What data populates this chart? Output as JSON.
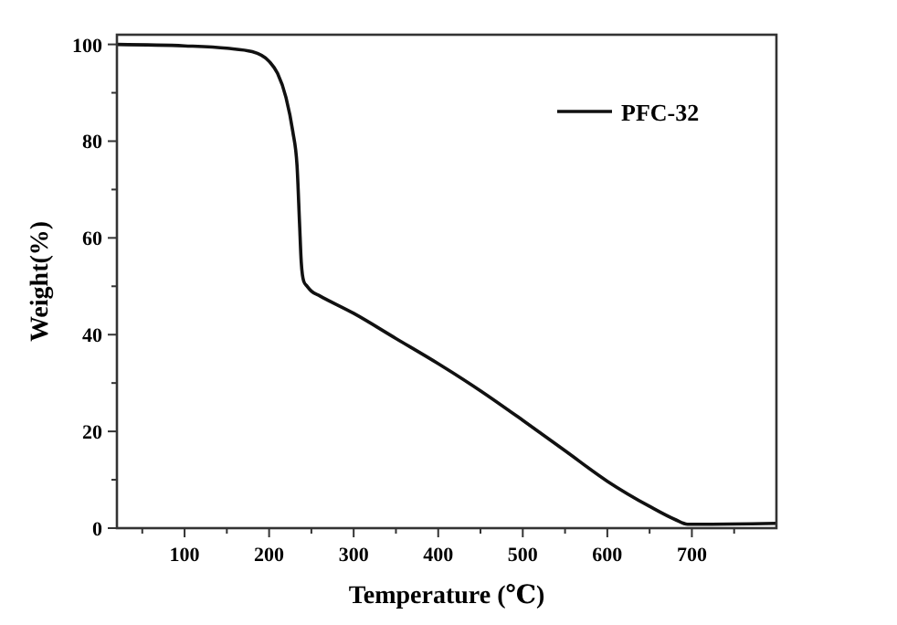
{
  "chart_data": {
    "type": "line",
    "xlabel": "Temperature (℃)",
    "ylabel": "Weight(%)",
    "xlim": [
      20,
      800
    ],
    "xticks": [
      100,
      200,
      300,
      400,
      500,
      600,
      700
    ],
    "ylim": [
      0,
      102
    ],
    "yticks": [
      0,
      20,
      40,
      60,
      80,
      100
    ],
    "legend": "top right",
    "grid": false,
    "line_style": "solid",
    "series": [
      {
        "name": "PFC-32",
        "color": "#111111",
        "x": [
          20,
          100,
          150,
          180,
          200,
          210,
          220,
          228,
          233,
          236,
          238,
          241,
          245,
          250,
          260,
          300,
          350,
          400,
          450,
          500,
          550,
          600,
          650,
          680,
          695,
          800
        ],
        "values": [
          100,
          99.7,
          99.2,
          98.5,
          96.5,
          94,
          89,
          82,
          75,
          63,
          55,
          51,
          50,
          49,
          48,
          44.4,
          39.2,
          34,
          28.4,
          22.3,
          16,
          9.7,
          4.5,
          1.8,
          0.8,
          1
        ]
      }
    ]
  }
}
